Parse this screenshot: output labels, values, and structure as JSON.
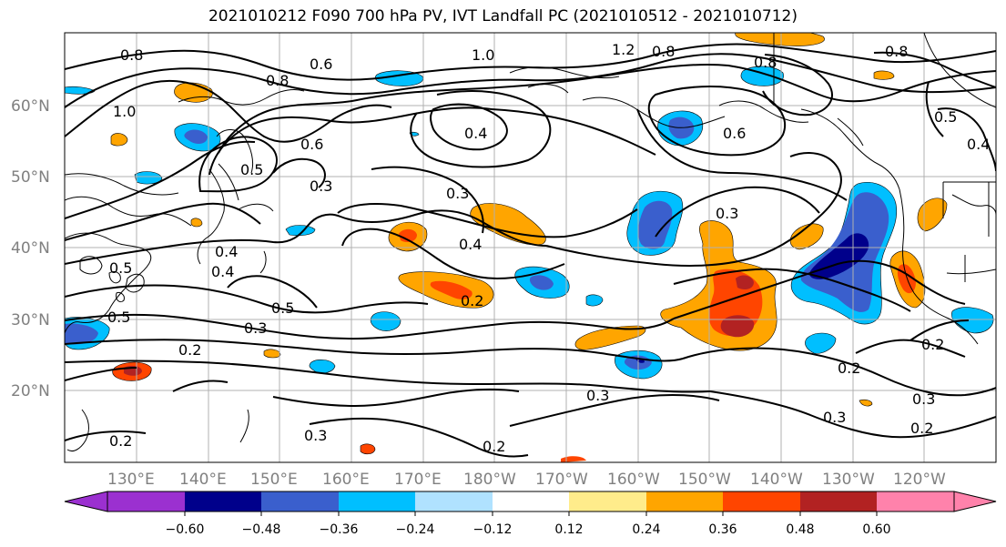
{
  "title": "2021010212 F090 700 hPa PV, IVT Landfall PC (2021010512 - 2021010712)",
  "lat_labels": [
    "60°N",
    "50°N",
    "40°N",
    "30°N",
    "20°N"
  ],
  "lon_labels": [
    "130°E",
    "140°E",
    "150°E",
    "160°E",
    "170°E",
    "180°W",
    "170°W",
    "160°W",
    "150°W",
    "140°W",
    "130°W",
    "120°W"
  ],
  "colorbar": {
    "tick_labels": [
      "−0.60",
      "−0.48",
      "−0.36",
      "−0.24",
      "−0.12",
      "0.12",
      "0.24",
      "0.36",
      "0.48",
      "0.60"
    ],
    "colors": [
      "#9b30d0",
      "#00008b",
      "#3a5fcd",
      "#00bfff",
      "#b0e2ff",
      "#ffffff",
      "#ffec8b",
      "#ffa500",
      "#ff4500",
      "#b22222",
      "#ff82ab"
    ]
  },
  "contour_labels": [
    "0.8",
    "0.6",
    "0.8",
    "1.0",
    "1.2",
    "0.8",
    "0.8",
    "0.8",
    "1.0",
    "0.6",
    "0.4",
    "0.6",
    "0.5",
    "0.4",
    "0.5",
    "0.3",
    "0.3",
    "0.4",
    "0.3",
    "0.4",
    "0.5",
    "0.3",
    "0.2",
    "0.2",
    "0.5",
    "0.5",
    "0.4",
    "0.2",
    "0.3",
    "0.2",
    "0.3",
    "0.3",
    "0.2",
    "0.2",
    "0.3",
    "0.2"
  ],
  "shading_colors": {
    "light_orange": "#ffd070",
    "orange": "#ffa500",
    "red_orange": "#ff4500",
    "dark_red": "#b22222",
    "light_blue": "#b0e2ff",
    "sky_blue": "#00bfff",
    "blue": "#3a5fcd",
    "navy": "#00008b"
  }
}
